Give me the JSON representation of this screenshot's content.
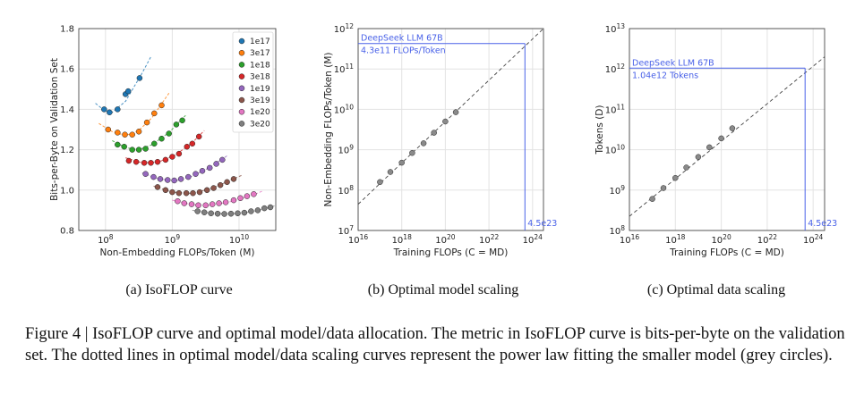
{
  "figure": {
    "caption": "Figure 4 | IsoFLOP curve and optimal model/data allocation. The metric in IsoFLOP curve is bits-per-byte on the validation set. The dotted lines in optimal model/data scaling curves represent the power law fitting the smaller model (grey circles)."
  },
  "chart_data": [
    {
      "type": "scatter",
      "panel_label": "(a) IsoFLOP curve",
      "xlabel": "Non-Embedding FLOPs/Token (M)",
      "ylabel": "Bits-per-Byte on Validation Set",
      "xscale": "log",
      "xlim_log10": [
        7.6,
        10.55
      ],
      "ylim": [
        0.8,
        1.8
      ],
      "xticks": [
        {
          "log10": 8,
          "base": "10",
          "exp": "8"
        },
        {
          "log10": 9,
          "base": "10",
          "exp": "9"
        },
        {
          "log10": 10,
          "base": "10",
          "exp": "10"
        }
      ],
      "yticks": [
        "0.8",
        "1.0",
        "1.2",
        "1.4",
        "1.6",
        "1.8"
      ],
      "grid": true,
      "legend_position": "top-right",
      "series": [
        {
          "name": "1e17",
          "color": "#1f77b4",
          "x_log10": [
            7.98,
            8.06,
            8.18,
            8.3,
            8.34,
            8.51
          ],
          "y": [
            1.4,
            1.385,
            1.4,
            1.475,
            1.49,
            1.555
          ],
          "fit": [
            [
              7.85,
              1.43
            ],
            [
              7.98,
              1.395
            ],
            [
              8.1,
              1.385
            ],
            [
              8.3,
              1.44
            ],
            [
              8.55,
              1.58
            ],
            [
              8.68,
              1.66
            ]
          ]
        },
        {
          "name": "3e17",
          "color": "#ff7f0e",
          "x_log10": [
            8.04,
            8.18,
            8.29,
            8.4,
            8.5,
            8.62,
            8.73,
            8.84
          ],
          "y": [
            1.3,
            1.285,
            1.275,
            1.275,
            1.29,
            1.335,
            1.38,
            1.42
          ],
          "fit": [
            [
              7.9,
              1.33
            ],
            [
              8.1,
              1.29
            ],
            [
              8.3,
              1.27
            ],
            [
              8.5,
              1.295
            ],
            [
              8.7,
              1.36
            ],
            [
              8.95,
              1.48
            ]
          ]
        },
        {
          "name": "1e18",
          "color": "#2ca02c",
          "x_log10": [
            8.18,
            8.28,
            8.4,
            8.5,
            8.6,
            8.73,
            8.84,
            8.95,
            9.06,
            9.15
          ],
          "y": [
            1.225,
            1.215,
            1.2,
            1.2,
            1.205,
            1.23,
            1.255,
            1.28,
            1.325,
            1.345
          ],
          "fit": [
            [
              8.1,
              1.245
            ],
            [
              8.3,
              1.21
            ],
            [
              8.5,
              1.2
            ],
            [
              8.7,
              1.225
            ],
            [
              8.95,
              1.285
            ],
            [
              9.2,
              1.37
            ]
          ]
        },
        {
          "name": "3e18",
          "color": "#d62728",
          "x_log10": [
            8.35,
            8.46,
            8.58,
            8.68,
            8.78,
            8.9,
            9.0,
            9.1,
            9.22,
            9.3,
            9.4
          ],
          "y": [
            1.145,
            1.14,
            1.135,
            1.135,
            1.14,
            1.15,
            1.165,
            1.18,
            1.215,
            1.23,
            1.265
          ],
          "fit": [
            [
              8.3,
              1.16
            ],
            [
              8.55,
              1.135
            ],
            [
              8.8,
              1.14
            ],
            [
              9.05,
              1.175
            ],
            [
              9.3,
              1.235
            ],
            [
              9.48,
              1.295
            ]
          ]
        },
        {
          "name": "1e19",
          "color": "#9467bd",
          "x_log10": [
            8.6,
            8.72,
            8.82,
            8.93,
            9.03,
            9.13,
            9.24,
            9.35,
            9.45,
            9.56,
            9.66,
            9.75
          ],
          "y": [
            1.08,
            1.065,
            1.055,
            1.05,
            1.048,
            1.055,
            1.065,
            1.08,
            1.095,
            1.11,
            1.13,
            1.15
          ],
          "fit": [
            [
              8.55,
              1.085
            ],
            [
              8.8,
              1.055
            ],
            [
              9.05,
              1.045
            ],
            [
              9.3,
              1.07
            ],
            [
              9.55,
              1.11
            ],
            [
              9.82,
              1.17
            ]
          ]
        },
        {
          "name": "3e19",
          "color": "#8c564b",
          "x_log10": [
            8.78,
            8.9,
            9.0,
            9.1,
            9.21,
            9.31,
            9.41,
            9.52,
            9.62,
            9.72,
            9.82,
            9.92
          ],
          "y": [
            1.015,
            1.0,
            0.99,
            0.985,
            0.985,
            0.985,
            0.99,
            1.0,
            1.01,
            1.025,
            1.04,
            1.055
          ],
          "fit": [
            [
              8.72,
              1.02
            ],
            [
              9.0,
              0.99
            ],
            [
              9.3,
              0.983
            ],
            [
              9.6,
              1.01
            ],
            [
              9.85,
              1.045
            ],
            [
              10.05,
              1.075
            ]
          ]
        },
        {
          "name": "1e20",
          "color": "#e377c2",
          "x_log10": [
            9.08,
            9.18,
            9.29,
            9.39,
            9.5,
            9.6,
            9.7,
            9.8,
            9.92,
            10.02,
            10.12,
            10.22
          ],
          "y": [
            0.945,
            0.935,
            0.93,
            0.925,
            0.925,
            0.93,
            0.935,
            0.94,
            0.95,
            0.96,
            0.97,
            0.98
          ],
          "fit": [
            [
              9.0,
              0.95
            ],
            [
              9.3,
              0.928
            ],
            [
              9.6,
              0.925
            ],
            [
              9.9,
              0.945
            ],
            [
              10.2,
              0.975
            ],
            [
              10.35,
              0.995
            ]
          ]
        },
        {
          "name": "3e20",
          "color": "#7f7f7f",
          "x_log10": [
            9.38,
            9.48,
            9.58,
            9.68,
            9.78,
            9.88,
            9.98,
            10.08,
            10.18,
            10.28,
            10.38,
            10.47
          ],
          "y": [
            0.895,
            0.89,
            0.885,
            0.883,
            0.882,
            0.883,
            0.885,
            0.888,
            0.895,
            0.9,
            0.91,
            0.915
          ],
          "fit": [
            [
              9.3,
              0.9
            ],
            [
              9.6,
              0.885
            ],
            [
              9.9,
              0.882
            ],
            [
              10.2,
              0.893
            ],
            [
              10.45,
              0.912
            ],
            [
              10.55,
              0.925
            ]
          ]
        }
      ]
    },
    {
      "type": "scatter",
      "panel_label": "(b) Optimal model scaling",
      "xlabel": "Training FLOPs (C = MD)",
      "ylabel": "Non-Embedding FLOPs/Token (M)",
      "xscale": "log",
      "yscale": "log",
      "xlim_log10": [
        16,
        24.5
      ],
      "ylim_log10": [
        7,
        12
      ],
      "xticks": [
        {
          "log10": 16,
          "base": "10",
          "exp": "16"
        },
        {
          "log10": 18,
          "base": "10",
          "exp": "18"
        },
        {
          "log10": 20,
          "base": "10",
          "exp": "20"
        },
        {
          "log10": 22,
          "base": "10",
          "exp": "22"
        },
        {
          "log10": 24,
          "base": "10",
          "exp": "24"
        }
      ],
      "yticks": [
        {
          "log10": 7,
          "base": "10",
          "exp": "7"
        },
        {
          "log10": 8,
          "base": "10",
          "exp": "8"
        },
        {
          "log10": 9,
          "base": "10",
          "exp": "9"
        },
        {
          "log10": 10,
          "base": "10",
          "exp": "10"
        },
        {
          "log10": 11,
          "base": "10",
          "exp": "11"
        },
        {
          "log10": 12,
          "base": "10",
          "exp": "12"
        }
      ],
      "grid": true,
      "points": {
        "x_log10": [
          17.0,
          17.48,
          18.0,
          18.48,
          19.0,
          19.48,
          20.0,
          20.48
        ],
        "y_log10": [
          8.2,
          8.45,
          8.68,
          8.92,
          9.16,
          9.42,
          9.7,
          9.93
        ]
      },
      "fit_line": {
        "x_log10": [
          16.0,
          24.5
        ],
        "y_log10": [
          7.65,
          12.0
        ]
      },
      "annotation": {
        "label": "DeepSeek LLM 67B",
        "value": "4.3e11 FLOPs/Token",
        "x_value": "4.5e23",
        "x_log10": 23.65,
        "y_log10": 11.63,
        "color": "#4a62e8"
      }
    },
    {
      "type": "scatter",
      "panel_label": "(c) Optimal data scaling",
      "xlabel": "Training FLOPs (C = MD)",
      "ylabel": "Tokens (D)",
      "xscale": "log",
      "yscale": "log",
      "xlim_log10": [
        16,
        24.5
      ],
      "ylim_log10": [
        8,
        13
      ],
      "xticks": [
        {
          "log10": 16,
          "base": "10",
          "exp": "16"
        },
        {
          "log10": 18,
          "base": "10",
          "exp": "18"
        },
        {
          "log10": 20,
          "base": "10",
          "exp": "20"
        },
        {
          "log10": 22,
          "base": "10",
          "exp": "22"
        },
        {
          "log10": 24,
          "base": "10",
          "exp": "24"
        }
      ],
      "yticks": [
        {
          "log10": 8,
          "base": "10",
          "exp": "8"
        },
        {
          "log10": 9,
          "base": "10",
          "exp": "9"
        },
        {
          "log10": 10,
          "base": "10",
          "exp": "10"
        },
        {
          "log10": 11,
          "base": "10",
          "exp": "11"
        },
        {
          "log10": 12,
          "base": "10",
          "exp": "12"
        },
        {
          "log10": 13,
          "base": "10",
          "exp": "13"
        }
      ],
      "grid": true,
      "points": {
        "x_log10": [
          17.0,
          17.48,
          18.0,
          18.48,
          19.0,
          19.48,
          20.0,
          20.48
        ],
        "y_log10": [
          8.78,
          9.05,
          9.3,
          9.56,
          9.82,
          10.06,
          10.28,
          10.53
        ]
      },
      "fit_line": {
        "x_log10": [
          16.0,
          24.5
        ],
        "y_log10": [
          8.35,
          12.3
        ]
      },
      "annotation": {
        "label": "DeepSeek LLM 67B",
        "value": "1.04e12 Tokens",
        "x_value": "4.5e23",
        "x_log10": 23.65,
        "y_log10": 12.02,
        "color": "#4a62e8"
      }
    }
  ]
}
